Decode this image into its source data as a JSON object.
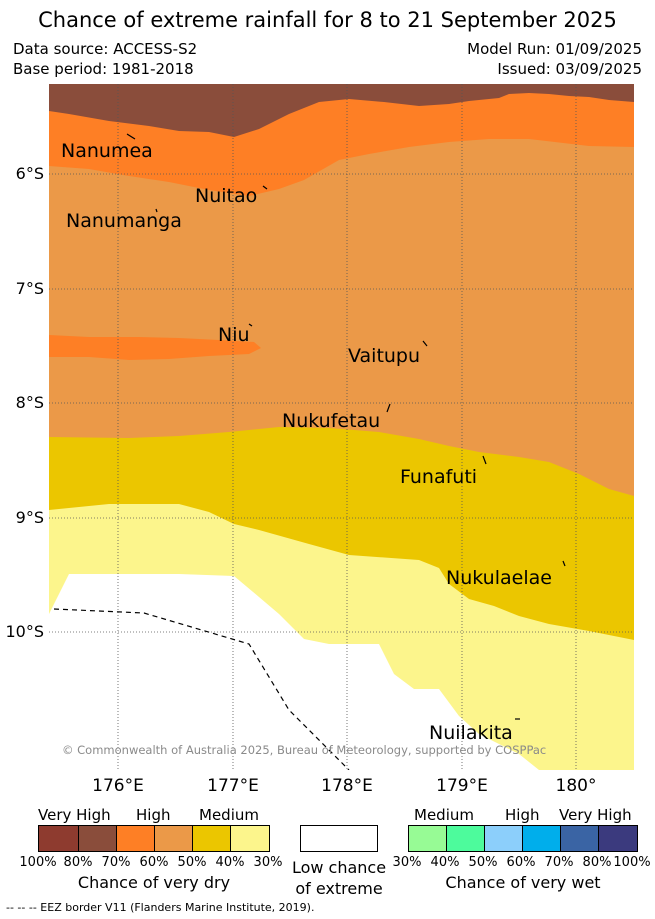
{
  "title": "Chance of extreme rainfall for 8 to 21 September 2025",
  "meta": {
    "data_source": "Data source: ACCESS-S2",
    "base_period": "Base period: 1981-2018",
    "model_run": "Model Run: 01/09/2025",
    "issued": "Issued: 03/09/2025"
  },
  "axes": {
    "y_ticks": [
      "6°S",
      "7°S",
      "8°S",
      "9°S",
      "10°S"
    ],
    "x_ticks": [
      "176°E",
      "177°E",
      "178°E",
      "179°E",
      "180°"
    ]
  },
  "places": {
    "nanumea": "Nanumea",
    "nuitao": "Nuitao",
    "nanumanga": "Nanumanga",
    "niu": "Niu",
    "vaitupu": "Vaitupu",
    "nukufetau": "Nukufetau",
    "funafuti": "Funafuti",
    "nukulaelae": "Nukulaelae",
    "nuilakita": "Nuilakita"
  },
  "copyright": "© Commonwealth of Australia 2025, Bureau of Meteorology, supported by COSPPac",
  "legend": {
    "dry": {
      "heads": [
        "Very High",
        "High",
        "Medium"
      ],
      "pcts": [
        "100%",
        "80%",
        "70%",
        "60%",
        "50%",
        "40%",
        "30%"
      ],
      "caption": "Chance of very dry",
      "colors": [
        "#8e3b2f",
        "#8a4d3b",
        "#fe7f25",
        "#eb9948",
        "#ebc600",
        "#fcf58c"
      ]
    },
    "low": {
      "caption_line1": "Low chance",
      "caption_line2": "of extreme",
      "color": "#ffffff"
    },
    "wet": {
      "heads": [
        "Medium",
        "High",
        "Very High"
      ],
      "pcts": [
        "30%",
        "40%",
        "50%",
        "60%",
        "70%",
        "80%",
        "100%"
      ],
      "caption": "Chance of very wet",
      "colors": [
        "#97fb95",
        "#4dfb9c",
        "#8ccffb",
        "#00aeeb",
        "#3a64a4",
        "#3b3a7e"
      ]
    }
  },
  "footnote": "-- -- -- EEZ border V11 (Flanders Marine Institute, 2019).",
  "colors": {
    "very_high_dry": "#8a4d3b",
    "high_dry_dark": "#fe7f25",
    "high_dry": "#eb9948",
    "medium_dry_dark": "#ebc600",
    "medium_dry": "#fcf58c",
    "low": "#ffffff"
  }
}
